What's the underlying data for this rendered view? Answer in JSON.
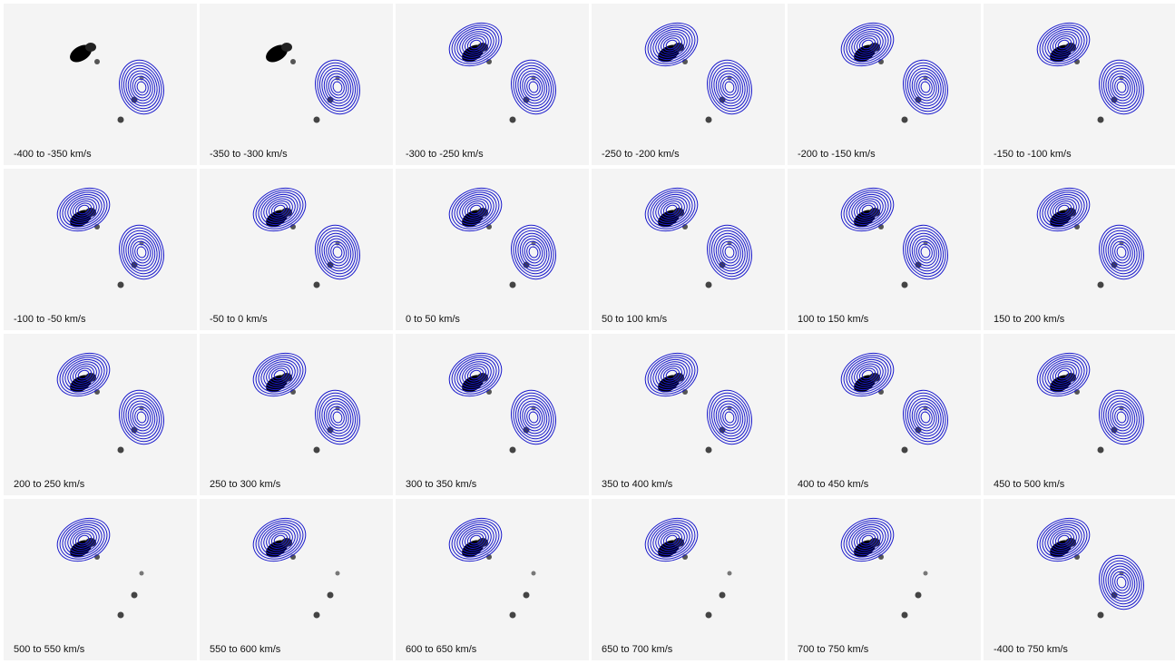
{
  "figure": {
    "layout": "4 rows x 6 columns",
    "background_color": "#f4f4f4",
    "contour_color": "#1a1acc",
    "emission_color": "#000000"
  },
  "panels": [
    {
      "label": "-400 to -350 km/s",
      "contours": [
        "SW"
      ]
    },
    {
      "label": "-350 to -300 km/s",
      "contours": [
        "SW"
      ]
    },
    {
      "label": "-300 to -250 km/s",
      "contours": [
        "NE",
        "SW"
      ]
    },
    {
      "label": "-250 to -200 km/s",
      "contours": [
        "NE",
        "SW"
      ]
    },
    {
      "label": "-200 to -150 km/s",
      "contours": [
        "NE",
        "SW"
      ]
    },
    {
      "label": "-150 to -100 km/s",
      "contours": [
        "NE",
        "SW"
      ]
    },
    {
      "label": "-100 to -50 km/s",
      "contours": [
        "NE",
        "SW"
      ]
    },
    {
      "label": "-50 to 0 km/s",
      "contours": [
        "NE",
        "SW"
      ]
    },
    {
      "label": "0 to 50 km/s",
      "contours": [
        "NE",
        "SW"
      ]
    },
    {
      "label": "50 to 100 km/s",
      "contours": [
        "NE",
        "SW"
      ]
    },
    {
      "label": "100 to 150 km/s",
      "contours": [
        "NE",
        "SW"
      ]
    },
    {
      "label": "150 to 200 km/s",
      "contours": [
        "NE",
        "SW"
      ]
    },
    {
      "label": "200 to 250 km/s",
      "contours": [
        "NE",
        "SW"
      ]
    },
    {
      "label": "250 to 300 km/s",
      "contours": [
        "NE",
        "SW"
      ]
    },
    {
      "label": "300 to 350 km/s",
      "contours": [
        "NE",
        "SW"
      ]
    },
    {
      "label": "350 to 400 km/s",
      "contours": [
        "NE",
        "SW"
      ]
    },
    {
      "label": "400 to 450 km/s",
      "contours": [
        "NE",
        "SW"
      ]
    },
    {
      "label": "450 to 500 km/s",
      "contours": [
        "NE",
        "SW"
      ]
    },
    {
      "label": "500 to 550 km/s",
      "contours": [
        "NE"
      ]
    },
    {
      "label": "550 to 600 km/s",
      "contours": [
        "NE"
      ]
    },
    {
      "label": "600 to 650 km/s",
      "contours": [
        "NE"
      ]
    },
    {
      "label": "650 to 700 km/s",
      "contours": [
        "NE"
      ]
    },
    {
      "label": "700 to 750 km/s",
      "contours": [
        "NE"
      ]
    },
    {
      "label": "-400 to 750 km/s",
      "contours": [
        "NE",
        "SW"
      ]
    }
  ]
}
